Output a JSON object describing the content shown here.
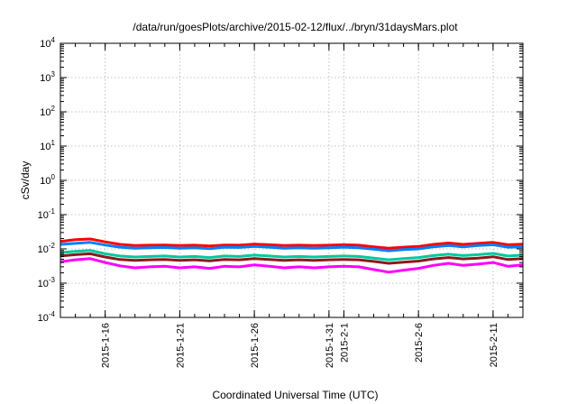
{
  "chart_data": {
    "type": "line",
    "title": "/data/run/goesPlots/archive/2015-02-12/flux/../bryn/31daysMars.plot",
    "xlabel": "Coordinated Universal Time (UTC)",
    "ylabel": "cSv/day",
    "yscale": "log",
    "ylim": [
      0.0001,
      10000
    ],
    "y_ticks": [
      {
        "value": 0.0001,
        "base": "10",
        "exp": "-4"
      },
      {
        "value": 0.001,
        "base": "10",
        "exp": "-3"
      },
      {
        "value": 0.01,
        "base": "10",
        "exp": "-2"
      },
      {
        "value": 0.1,
        "base": "10",
        "exp": "-1"
      },
      {
        "value": 1,
        "base": "10",
        "exp": "0"
      },
      {
        "value": 10,
        "base": "10",
        "exp": "1"
      },
      {
        "value": 100,
        "base": "10",
        "exp": "2"
      },
      {
        "value": 1000,
        "base": "10",
        "exp": "3"
      },
      {
        "value": 10000,
        "base": "10",
        "exp": "4"
      }
    ],
    "xlim": [
      "2015-01-13",
      "2015-02-13"
    ],
    "x_ticks": [
      {
        "date": "2015-01-16",
        "label": "2015-1-16"
      },
      {
        "date": "2015-01-21",
        "label": "2015-1-21"
      },
      {
        "date": "2015-01-26",
        "label": "2015-1-26"
      },
      {
        "date": "2015-01-31",
        "label": "2015-1-31"
      },
      {
        "date": "2015-02-01",
        "label": "2015-2-1"
      },
      {
        "date": "2015-02-06",
        "label": "2015-2-6"
      },
      {
        "date": "2015-02-11",
        "label": "2015-2-11"
      }
    ],
    "grid": true,
    "series": [
      {
        "color": "#ff0000",
        "values": [
          0.0165,
          0.0185,
          0.0195,
          0.016,
          0.0135,
          0.0125,
          0.0128,
          0.013,
          0.0126,
          0.0128,
          0.0122,
          0.013,
          0.0128,
          0.0138,
          0.0132,
          0.0125,
          0.0128,
          0.0125,
          0.0128,
          0.0132,
          0.0128,
          0.0115,
          0.0105,
          0.0112,
          0.0118,
          0.0135,
          0.0148,
          0.0135,
          0.0145,
          0.0155,
          0.0132,
          0.0138
        ]
      },
      {
        "color": "#0080ff",
        "values": [
          0.0135,
          0.0145,
          0.0155,
          0.013,
          0.0112,
          0.0105,
          0.0108,
          0.011,
          0.0105,
          0.0108,
          0.0102,
          0.0112,
          0.011,
          0.0118,
          0.0112,
          0.0105,
          0.0108,
          0.0105,
          0.0108,
          0.0112,
          0.0108,
          0.0098,
          0.0088,
          0.0095,
          0.01,
          0.0115,
          0.0125,
          0.0115,
          0.0125,
          0.0132,
          0.0112,
          0.0115
        ]
      },
      {
        "color": "#00c8a0",
        "values": [
          0.0078,
          0.0085,
          0.009,
          0.0072,
          0.0062,
          0.0058,
          0.006,
          0.0062,
          0.0058,
          0.006,
          0.0056,
          0.0062,
          0.006,
          0.0066,
          0.0062,
          0.0058,
          0.006,
          0.0058,
          0.006,
          0.0062,
          0.006,
          0.0054,
          0.0048,
          0.0052,
          0.0056,
          0.0064,
          0.007,
          0.0064,
          0.0068,
          0.0074,
          0.0062,
          0.0066
        ]
      },
      {
        "color": "#8b1a1a",
        "values": [
          0.0062,
          0.0068,
          0.0072,
          0.0058,
          0.0049,
          0.0046,
          0.0048,
          0.0049,
          0.0046,
          0.0048,
          0.0045,
          0.0049,
          0.0048,
          0.0052,
          0.0049,
          0.0046,
          0.0048,
          0.0046,
          0.0048,
          0.0049,
          0.0048,
          0.0043,
          0.0038,
          0.0041,
          0.0044,
          0.0051,
          0.0056,
          0.0051,
          0.0054,
          0.0059,
          0.0049,
          0.0052
        ]
      },
      {
        "color": "#ff00ff",
        "values": [
          0.0042,
          0.0048,
          0.0052,
          0.004,
          0.0032,
          0.0028,
          0.003,
          0.0031,
          0.0028,
          0.003,
          0.0027,
          0.0031,
          0.003,
          0.0034,
          0.0031,
          0.0028,
          0.003,
          0.0028,
          0.003,
          0.0031,
          0.003,
          0.0025,
          0.0021,
          0.0024,
          0.0027,
          0.0033,
          0.0038,
          0.0033,
          0.0036,
          0.004,
          0.0031,
          0.0034
        ]
      }
    ]
  }
}
